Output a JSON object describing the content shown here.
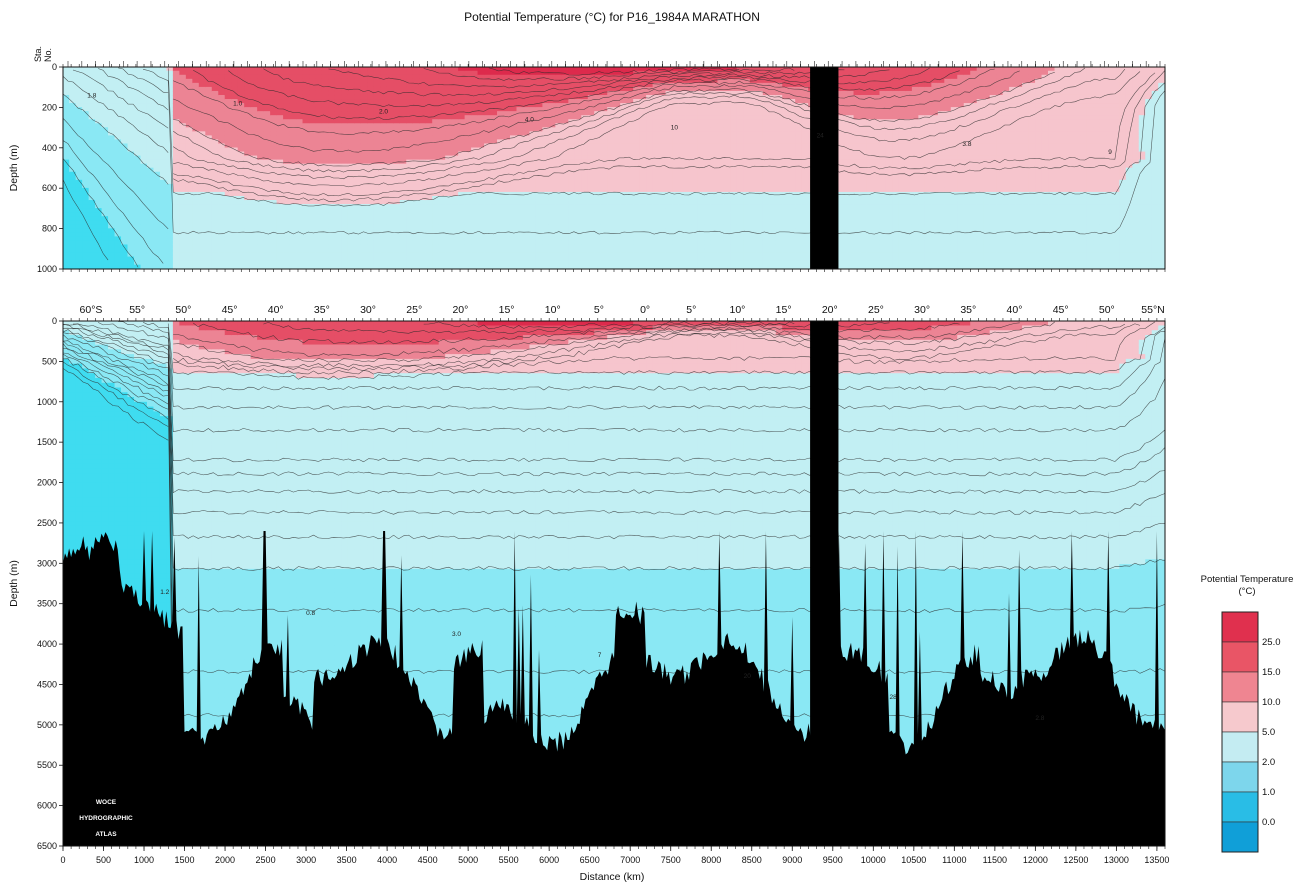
{
  "chart_data": {
    "type": "heatmap",
    "title": "Potential Temperature (°C) for P16_1984A MARATHON",
    "xlabel": "Distance (km)",
    "ylabel": "Depth (m)",
    "station_label": [
      "Sta.",
      "No."
    ],
    "x_ticks": [
      "0",
      "500",
      "1000",
      "1500",
      "2000",
      "2500",
      "3000",
      "3500",
      "4000",
      "4500",
      "5000",
      "5500",
      "6000",
      "6500",
      "7000",
      "7500",
      "8000",
      "8500",
      "9000",
      "9500",
      "10000",
      "10500",
      "11000",
      "11500",
      "12000",
      "12500",
      "13000",
      "13500"
    ],
    "xlim": [
      0,
      13600
    ],
    "latitude_labels": [
      "60°S",
      "55°",
      "50°",
      "45°",
      "40°",
      "35°",
      "30°",
      "25°",
      "20°",
      "15°",
      "10°",
      "5°",
      "0°",
      "5°",
      "10°",
      "15°",
      "20°",
      "25°",
      "30°",
      "35°",
      "40°",
      "45°",
      "50°",
      "55°N"
    ],
    "panels": [
      {
        "name": "upper",
        "ylim": [
          1000,
          0
        ],
        "y_ticks": [
          "0",
          "200",
          "400",
          "600",
          "800",
          "1000"
        ]
      },
      {
        "name": "full",
        "ylim": [
          6500,
          0
        ],
        "y_ticks": [
          "0",
          "500",
          "1000",
          "1500",
          "2000",
          "2500",
          "3000",
          "3500",
          "4000",
          "4500",
          "5000",
          "5500",
          "6000",
          "6500"
        ]
      }
    ],
    "isotherm_labels": [
      "1.8",
      "1.2",
      "1.0",
      "0.8",
      "2.0",
      "3.0",
      "4.0",
      "7",
      "10",
      "20",
      "24",
      "28",
      "3.8",
      "2.8",
      "9"
    ],
    "gap": {
      "x_start": 9220,
      "x_end": 9570
    },
    "legend": {
      "title": [
        "Potential Temperature",
        "(°C)"
      ],
      "labels": [
        "25.0",
        "15.0",
        "10.0",
        "5.0",
        "2.0",
        "1.0",
        "0.0"
      ],
      "colors": [
        "#e0304e",
        "#e95566",
        "#ef8591",
        "#f6c9cd",
        "#c4ecf2",
        "#7dd6ec",
        "#29bde6",
        "#109fd8"
      ]
    },
    "colors": {
      "bands": {
        "hot": "#dd2a4c",
        "warm": "#e54e66",
        "mild": "#ec8494",
        "cool": "#f6c5cd",
        "cold": "#c2eff3",
        "deep": "#8ae8f4",
        "coldest": "#3fdcf0"
      },
      "bottom": "#000000"
    },
    "watermark": [
      "WOCE",
      "HYDROGRAPHIC",
      "ATLAS"
    ]
  }
}
